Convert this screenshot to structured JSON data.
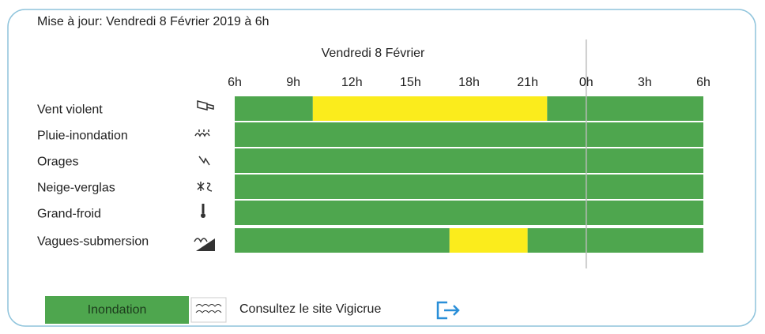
{
  "header": {
    "update": "Mise à jour: Vendredi 8 Février 2019 à 6h"
  },
  "timeline": {
    "day": "Vendredi 8 Février",
    "hour_labels": [
      "6h",
      "9h",
      "12h",
      "15h",
      "18h",
      "21h",
      "0h",
      "3h",
      "6h"
    ],
    "span": 24,
    "day_break": 18,
    "rows": [
      {
        "label": "Vent violent",
        "segments": [
          {
            "from": 0,
            "to": 4,
            "color": "#4ea64e"
          },
          {
            "from": 4,
            "to": 16,
            "color": "#fbec1c"
          },
          {
            "from": 16,
            "to": 24,
            "color": "#4ea64e"
          }
        ]
      },
      {
        "label": "Pluie-inondation",
        "segments": [
          {
            "from": 0,
            "to": 24,
            "color": "#4ea64e"
          }
        ]
      },
      {
        "label": "Orages",
        "segments": [
          {
            "from": 0,
            "to": 24,
            "color": "#4ea64e"
          }
        ]
      },
      {
        "label": "Neige-verglas",
        "segments": [
          {
            "from": 0,
            "to": 24,
            "color": "#4ea64e"
          }
        ]
      },
      {
        "label": "Grand-froid",
        "segments": [
          {
            "from": 0,
            "to": 24,
            "color": "#4ea64e"
          }
        ]
      },
      {
        "label": "Vagues-submersion",
        "segments": [
          {
            "from": 0,
            "to": 11,
            "color": "#4ea64e"
          },
          {
            "from": 11,
            "to": 15,
            "color": "#fbec1c"
          },
          {
            "from": 15,
            "to": 24,
            "color": "#4ea64e"
          }
        ]
      }
    ]
  },
  "legend": {
    "flood": "Inondation",
    "link": "Consultez le site Vigicrue"
  }
}
